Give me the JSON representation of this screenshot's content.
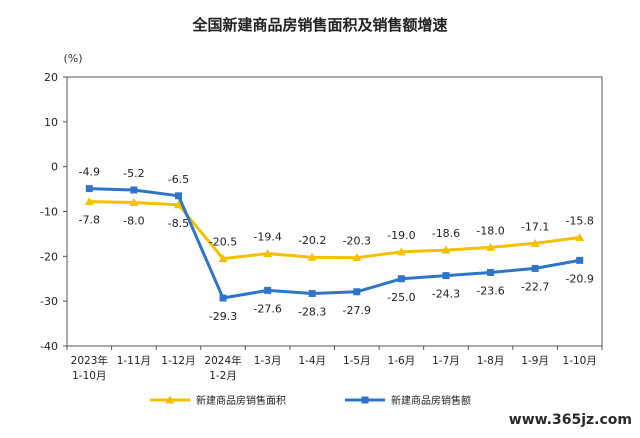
{
  "watermark": "www.365jz.com",
  "chart_data": {
    "type": "line",
    "title": "全国新建商品房销售面积及销售额增速",
    "ylabel": "(%)",
    "xlabel": "",
    "ylim": [
      -40,
      20
    ],
    "yticks": [
      20,
      10,
      0,
      -10,
      -20,
      -30,
      -40
    ],
    "grid": false,
    "legend_position": "bottom",
    "categories": [
      [
        "2023年",
        "1-10月"
      ],
      [
        "1-11月"
      ],
      [
        "1-12月"
      ],
      [
        "2024年",
        "1-2月"
      ],
      [
        "1-3月"
      ],
      [
        "1-4月"
      ],
      [
        "1-5月"
      ],
      [
        "1-6月"
      ],
      [
        "1-7月"
      ],
      [
        "1-8月"
      ],
      [
        "1-9月"
      ],
      [
        "1-10月"
      ]
    ],
    "series": [
      {
        "name": "新建商品房销售面积",
        "color": "#f5c000",
        "marker": "triangle",
        "values": [
          -7.8,
          -8.0,
          -8.5,
          -20.5,
          -19.4,
          -20.2,
          -20.3,
          -19.0,
          -18.6,
          -18.0,
          -17.1,
          -15.8
        ],
        "labels": [
          "-7.8",
          "-8.0",
          "-8.5",
          "-20.5",
          "-19.4",
          "-20.2",
          "-20.3",
          "-19.0",
          "-18.6",
          "-18.0",
          "-17.1",
          "-15.8"
        ]
      },
      {
        "name": "新建商品房销售额",
        "color": "#2e75c8",
        "marker": "square",
        "values": [
          -4.9,
          -5.2,
          -6.5,
          -29.3,
          -27.6,
          -28.3,
          -27.9,
          -25.0,
          -24.3,
          -23.6,
          -22.7,
          -20.9
        ],
        "labels": [
          "-4.9",
          "-5.2",
          "-6.5",
          "-29.3",
          "-27.6",
          "-28.3",
          "-27.9",
          "-25.0",
          "-24.3",
          "-23.6",
          "-22.7",
          "-20.9"
        ]
      }
    ]
  }
}
